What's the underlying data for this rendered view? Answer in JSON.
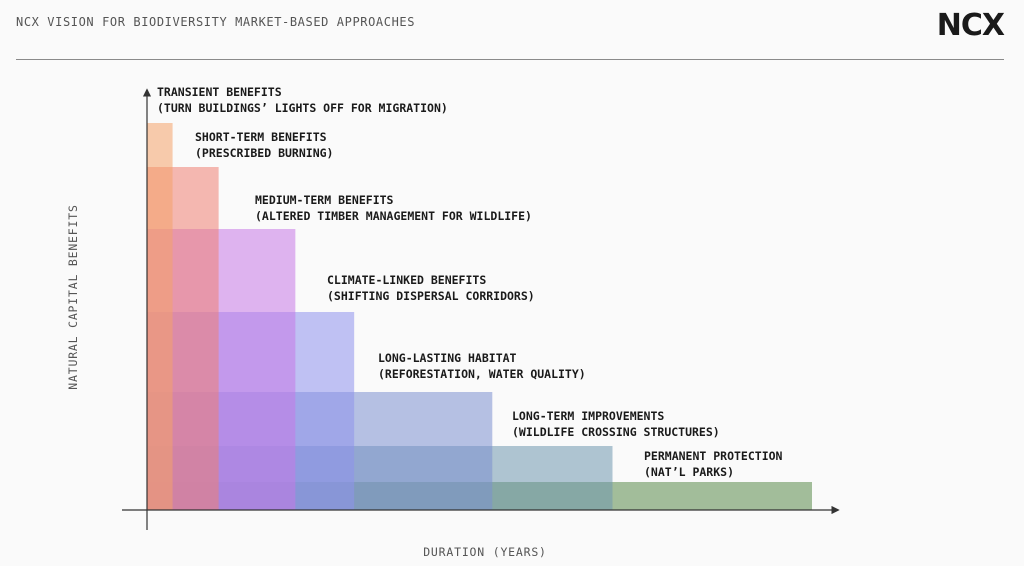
{
  "header": {
    "title": "NCX VISION FOR BIODIVERSITY MARKET-BASED APPROACHES",
    "logo": "NCX"
  },
  "chart_data": {
    "type": "bar",
    "title": "",
    "xlabel": "DURATION (YEARS)",
    "ylabel": "NATURAL CAPITAL BENEFITS",
    "grid": false,
    "categories": [
      {
        "name": "TRANSIENT BENEFITS",
        "example": "(TURN BUILDINGS’ LIGHTS OFF FOR MIGRATION)",
        "duration": 1.0,
        "level": 7,
        "color": "#f4a36a"
      },
      {
        "name": "SHORT-TERM BENEFITS",
        "example": "(PRESCRIBED BURNING)",
        "duration": 2.8,
        "level": 6,
        "color": "#ef7f73"
      },
      {
        "name": "MEDIUM-TERM BENEFITS",
        "example": "(ALTERED TIMBER MANAGEMENT FOR WILDLIFE)",
        "duration": 5.8,
        "level": 5,
        "color": "#c678e6"
      },
      {
        "name": "CLIMATE-LINKED BENEFITS",
        "example": "(SHIFTING DISPERSAL CORRIDORS)",
        "duration": 8.1,
        "level": 4,
        "color": "#8e91ec"
      },
      {
        "name": "LONG-LASTING HABITAT",
        "example": "(REFORESTATION, WATER QUALITY)",
        "duration": 13.5,
        "level": 3,
        "color": "#7b8fd0"
      },
      {
        "name": "LONG-TERM IMPROVEMENTS",
        "example": "(WILDLIFE CROSSING STRUCTURES)",
        "duration": 18.2,
        "level": 2,
        "color": "#6f97ae"
      },
      {
        "name": "PERMANENT PROTECTION",
        "example": "(NAT’L PARKS)",
        "duration": 26.0,
        "level": 1,
        "color": "#5a8a4a"
      }
    ],
    "level_heights": [
      28,
      36,
      54,
      80,
      83,
      62,
      44
    ],
    "x_range": [
      0,
      26
    ],
    "y_range": [
      0,
      7
    ]
  }
}
